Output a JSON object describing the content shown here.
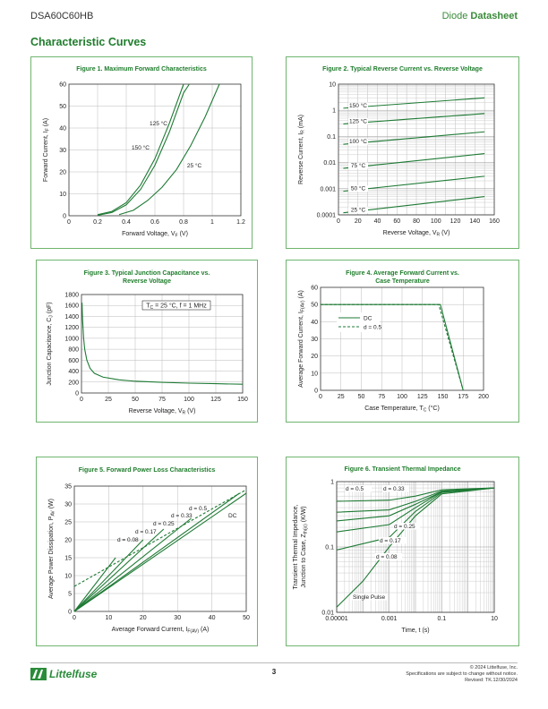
{
  "header": {
    "part_number": "DSA60C60HB",
    "doc_type_prefix": "Diode",
    "doc_type_bold": "Datasheet"
  },
  "section_title": "Characteristic Curves",
  "figures": {
    "fig1": {
      "title": "Figure 1. Maximum Forward Characteristics",
      "ylabel_pre": "Forward Current, I",
      "ylabel_sub": "F",
      "ylabel_post": " (A)",
      "xlabel_pre": "Forward Voltage, V",
      "xlabel_sub": "F",
      "xlabel_post": " (V)",
      "xticks": [
        "0",
        "0.2",
        "0.4",
        "0.6",
        "0.8",
        "1",
        "1.2"
      ],
      "yticks": [
        "0",
        "10",
        "20",
        "30",
        "40",
        "50",
        "60"
      ],
      "labels": [
        "125 °C",
        "150 °C",
        "25 °C"
      ]
    },
    "fig2": {
      "title": "Figure 2. Typical Reverse Current vs. Reverse Voltage",
      "ylabel_pre": "Reverse Current, I",
      "ylabel_sub": "R",
      "ylabel_post": " (mA)",
      "xlabel_pre": "Reverse Voltage, V",
      "xlabel_sub": "R",
      "xlabel_post": " (V)",
      "xticks": [
        "0",
        "20",
        "40",
        "60",
        "80",
        "100",
        "120",
        "140",
        "160"
      ],
      "yticks": [
        "0.0001",
        "0.001",
        "0.01",
        "0.1",
        "1",
        "10"
      ],
      "labels": [
        "150 °C",
        "125 °C",
        "100 °C",
        "75 °C",
        "50 °C",
        "25 °C"
      ]
    },
    "fig3": {
      "title_line1": "Figure 3. Typical Junction Capacitance vs.",
      "title_line2": "Reverse Voltage",
      "ylabel_pre": "Junction Capacitance, C",
      "ylabel_sub": "J",
      "ylabel_post": " (pF)",
      "xlabel_pre": "Reverse Voltage, V",
      "xlabel_sub": "R",
      "xlabel_post": " (V)",
      "xticks": [
        "0",
        "25",
        "50",
        "75",
        "100",
        "125",
        "150"
      ],
      "yticks": [
        "0",
        "200",
        "400",
        "600",
        "800",
        "1000",
        "1200",
        "1400",
        "1600",
        "1800"
      ],
      "annotation_pre": "T",
      "annotation_sub": "C",
      "annotation_post": " = 25 °C, f = 1 MHz"
    },
    "fig4": {
      "title_line1": "Figure 4. Average Forward Current vs.",
      "title_line2": "Case Temperature",
      "ylabel_pre": "Average Forward Current, I",
      "ylabel_sub": "F(AV)",
      "ylabel_post": " (A)",
      "xlabel_pre": "Case Temperature, T",
      "xlabel_sub": "C",
      "xlabel_post": " (°C)",
      "xticks": [
        "0",
        "25",
        "50",
        "75",
        "100",
        "125",
        "150",
        "175",
        "200"
      ],
      "yticks": [
        "0",
        "10",
        "20",
        "30",
        "40",
        "50",
        "60"
      ],
      "legend": [
        "DC",
        "d = 0.5"
      ]
    },
    "fig5": {
      "title": "Figure 5. Forward Power Loss Characteristics",
      "ylabel_pre": "Average Power Dissipation, P",
      "ylabel_sub": "AV",
      "ylabel_post": " (W)",
      "xlabel_pre": "Average Forward Current, I",
      "xlabel_sub": "F(AV)",
      "xlabel_post": " (A)",
      "xticks": [
        "0",
        "10",
        "20",
        "30",
        "40",
        "50"
      ],
      "yticks": [
        "0",
        "5",
        "10",
        "15",
        "20",
        "25",
        "30",
        "35"
      ],
      "labels": [
        "d = 0.5",
        "d = 0.33",
        "d = 0.25",
        "d = 0.17",
        "d = 0.08",
        "DC"
      ]
    },
    "fig6": {
      "title": "Figure 6. Transient Thermal Impedance",
      "ylabel_line1": "Transient Thermal Impedance,",
      "ylabel_line2_pre": "Junction to  Case, Z",
      "ylabel_line2_sub": "th(jc)",
      "ylabel_line2_post": " (K/W)",
      "xlabel": "Time, t (s)",
      "xticks": [
        "0.00001",
        "0.001",
        "0.1",
        "10"
      ],
      "yticks": [
        "0.01",
        "0.1",
        "1"
      ],
      "labels": [
        "d = 0.5",
        "d = 0.33",
        "d = 0.25",
        "d = 0.17",
        "d = 0.08",
        "Single Pulse"
      ]
    }
  },
  "footer": {
    "brand": "Littelfuse",
    "page": "3",
    "copyright": "© 2024 Littelfuse, Inc.",
    "notice": "Specifications are subject to change without notice.",
    "revised": "Revised: TK.12/30/2024"
  },
  "colors": {
    "curve": "#1e7a34",
    "border": "#6fb56f",
    "title": "#1f7d2c"
  },
  "chart_data": [
    {
      "type": "line",
      "title": "Figure 1. Maximum Forward Characteristics",
      "xlabel": "Forward Voltage, VF (V)",
      "ylabel": "Forward Current, IF (A)",
      "xlim": [
        0,
        1.2
      ],
      "ylim": [
        0,
        60
      ],
      "series": [
        {
          "name": "150 °C",
          "x": [
            0.2,
            0.3,
            0.4,
            0.5,
            0.6,
            0.7,
            0.8
          ],
          "y": [
            0.5,
            2,
            6,
            14,
            26,
            42,
            60
          ]
        },
        {
          "name": "125 °C",
          "x": [
            0.2,
            0.3,
            0.4,
            0.5,
            0.6,
            0.7,
            0.8,
            0.84
          ],
          "y": [
            0.2,
            1.5,
            5,
            12,
            23,
            38,
            56,
            60
          ]
        },
        {
          "name": "25 °C",
          "x": [
            0.35,
            0.45,
            0.55,
            0.65,
            0.75,
            0.85,
            0.95,
            1.05
          ],
          "y": [
            0.5,
            2.5,
            7,
            13,
            21,
            32,
            45,
            60
          ]
        }
      ]
    },
    {
      "type": "line",
      "title": "Figure 2. Typical Reverse Current vs. Reverse Voltage",
      "xlabel": "Reverse Voltage, VR (V)",
      "ylabel": "Reverse Current, IR (mA)",
      "xlim": [
        0,
        160
      ],
      "ylim": [
        0.0001,
        10
      ],
      "yscale": "log",
      "series": [
        {
          "name": "150 °C",
          "x": [
            5,
            150
          ],
          "y": [
            1.2,
            3.0
          ]
        },
        {
          "name": "125 °C",
          "x": [
            5,
            150
          ],
          "y": [
            0.3,
            0.75
          ]
        },
        {
          "name": "100 °C",
          "x": [
            5,
            150
          ],
          "y": [
            0.05,
            0.15
          ]
        },
        {
          "name": "75 °C",
          "x": [
            5,
            150
          ],
          "y": [
            0.006,
            0.022
          ]
        },
        {
          "name": "50 °C",
          "x": [
            5,
            150
          ],
          "y": [
            0.0008,
            0.003
          ]
        },
        {
          "name": "25 °C",
          "x": [
            5,
            150
          ],
          "y": [
            0.00012,
            0.0005
          ]
        }
      ]
    },
    {
      "type": "line",
      "title": "Figure 3. Typical Junction Capacitance vs. Reverse Voltage",
      "xlabel": "Reverse Voltage, VR (V)",
      "ylabel": "Junction Capacitance, CJ (pF)",
      "xlim": [
        0,
        150
      ],
      "ylim": [
        0,
        1800
      ],
      "series": [
        {
          "x": [
            0.5,
            1,
            2,
            3,
            5,
            8,
            12,
            20,
            35,
            50,
            75,
            100,
            125,
            150
          ],
          "y": [
            1650,
            1350,
            1000,
            800,
            600,
            450,
            360,
            290,
            240,
            215,
            195,
            180,
            170,
            160
          ]
        }
      ]
    },
    {
      "type": "line",
      "title": "Figure 4. Average Forward Current vs. Case Temperature",
      "xlabel": "Case Temperature, TC (°C)",
      "ylabel": "Average Forward Current, IF(AV) (A)",
      "xlim": [
        0,
        200
      ],
      "ylim": [
        0,
        60
      ],
      "series": [
        {
          "name": "DC",
          "x": [
            0,
            147,
            175
          ],
          "y": [
            50,
            50,
            0
          ]
        },
        {
          "name": "d = 0.5",
          "x": [
            0,
            145,
            175
          ],
          "y": [
            50,
            50,
            0
          ]
        }
      ]
    },
    {
      "type": "line",
      "title": "Figure 5. Forward Power Loss Characteristics",
      "xlabel": "Average Forward Current, IF(AV) (A)",
      "ylabel": "Average Power Dissipation, PAV (W)",
      "xlim": [
        0,
        50
      ],
      "ylim": [
        0,
        35
      ],
      "series": [
        {
          "name": "d = 0.08",
          "x": [
            0,
            12
          ],
          "y": [
            0,
            15
          ]
        },
        {
          "name": "d = 0.17",
          "x": [
            0,
            20
          ],
          "y": [
            0,
            20
          ]
        },
        {
          "name": "d = 0.25",
          "x": [
            0,
            26
          ],
          "y": [
            0,
            23
          ]
        },
        {
          "name": "d = 0.33",
          "x": [
            0,
            34
          ],
          "y": [
            0,
            26
          ]
        },
        {
          "name": "d = 0.5",
          "x": [
            0,
            48
          ],
          "y": [
            0,
            33
          ]
        },
        {
          "name": "DC",
          "x": [
            0,
            50
          ],
          "y": [
            0,
            33
          ]
        },
        {
          "name": "d = 0.5 (dashed)",
          "x": [
            0,
            50
          ],
          "y": [
            7,
            34
          ]
        }
      ]
    },
    {
      "type": "line",
      "title": "Figure 6. Transient Thermal Impedance",
      "xlabel": "Time, t (s)",
      "ylabel": "Transient Thermal Impedance, Junction to Case, Zth(jc) (K/W)",
      "xlim": [
        1e-05,
        10
      ],
      "ylim": [
        0.01,
        1
      ],
      "xscale": "log",
      "yscale": "log",
      "series": [
        {
          "name": "d = 0.5",
          "x": [
            1e-05,
            0.001,
            0.01,
            0.1,
            10
          ],
          "y": [
            0.5,
            0.52,
            0.6,
            0.75,
            0.8
          ]
        },
        {
          "name": "d = 0.33",
          "x": [
            1e-05,
            0.001,
            0.01,
            0.1,
            10
          ],
          "y": [
            0.34,
            0.37,
            0.5,
            0.72,
            0.8
          ]
        },
        {
          "name": "d = 0.25",
          "x": [
            1e-05,
            0.001,
            0.01,
            0.1,
            10
          ],
          "y": [
            0.25,
            0.3,
            0.45,
            0.7,
            0.8
          ]
        },
        {
          "name": "d = 0.17",
          "x": [
            1e-05,
            0.001,
            0.01,
            0.1,
            10
          ],
          "y": [
            0.17,
            0.22,
            0.4,
            0.7,
            0.8
          ]
        },
        {
          "name": "d = 0.08",
          "x": [
            1e-05,
            0.001,
            0.01,
            0.1,
            10
          ],
          "y": [
            0.09,
            0.14,
            0.35,
            0.68,
            0.8
          ]
        },
        {
          "name": "Single Pulse",
          "x": [
            1e-05,
            0.0001,
            0.001,
            0.01,
            0.1,
            10
          ],
          "y": [
            0.012,
            0.03,
            0.1,
            0.3,
            0.65,
            0.8
          ]
        }
      ]
    }
  ]
}
